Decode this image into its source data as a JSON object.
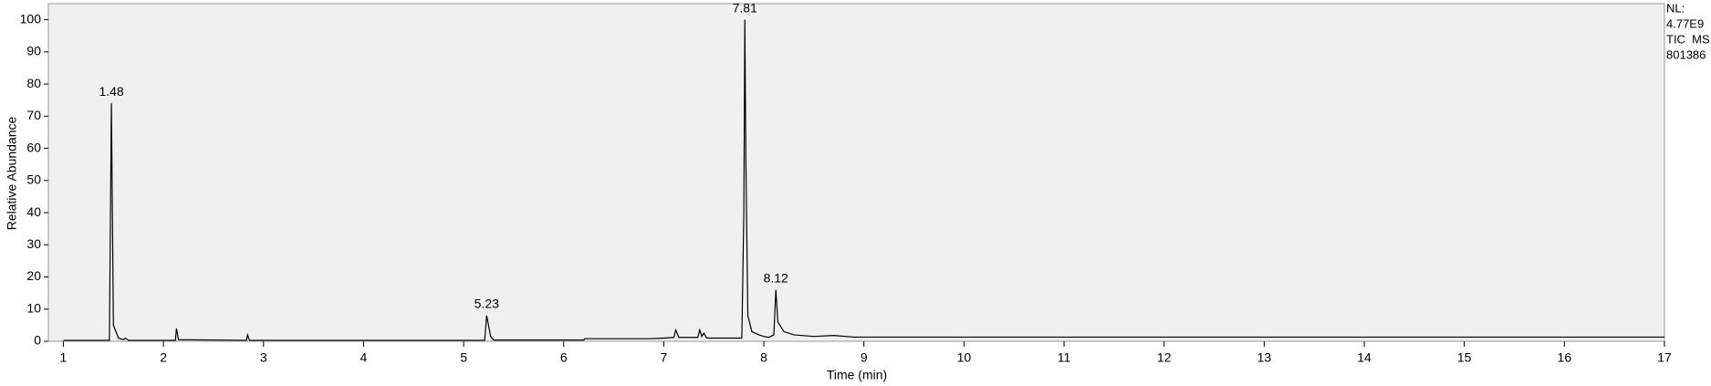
{
  "chart_data": {
    "type": "line",
    "x_label": "Time (min)",
    "y_label": "Relative Abundance",
    "side_note": [
      "NL:",
      "4.77E9",
      "TIC  MS",
      "801386"
    ],
    "xlim": [
      0.85,
      17
    ],
    "ylim": [
      0,
      105
    ],
    "xticks": [
      1,
      2,
      3,
      4,
      5,
      6,
      7,
      8,
      9,
      10,
      11,
      12,
      13,
      14,
      15,
      16,
      17
    ],
    "yticks": [
      0,
      10,
      20,
      30,
      40,
      50,
      60,
      70,
      80,
      90,
      100
    ],
    "series": [
      {
        "color": "#000000",
        "x": [
          1.0,
          1.46,
          1.48,
          1.5,
          1.55,
          1.6,
          1.62,
          1.65,
          2.12,
          2.13,
          2.15,
          2.83,
          2.84,
          2.86,
          5.21,
          5.23,
          5.27,
          5.3,
          6.2,
          6.21,
          6.85,
          7.0,
          7.1,
          7.12,
          7.15,
          7.34,
          7.36,
          7.38,
          7.4,
          7.43,
          7.78,
          7.8,
          7.81,
          7.82,
          7.84,
          7.88,
          7.95,
          8.0,
          8.05,
          8.1,
          8.12,
          8.14,
          8.2,
          8.3,
          8.5,
          8.7,
          8.9,
          17
        ],
        "values": [
          0.3,
          0.3,
          74,
          5,
          1,
          0.5,
          1,
          0.3,
          0.3,
          4,
          0.5,
          0.3,
          2,
          0.3,
          0.3,
          8,
          1.5,
          0.4,
          0.4,
          0.8,
          0.8,
          1,
          1.2,
          3.5,
          1.2,
          1.2,
          3.5,
          1.5,
          2.5,
          1,
          1,
          40,
          100,
          57,
          8,
          3,
          2,
          1.5,
          1.2,
          2,
          16,
          6,
          3,
          2,
          1.5,
          1.8,
          1.3,
          1.3
        ]
      }
    ],
    "peak_labels": {
      "x": [
        1.48,
        5.23,
        7.81,
        8.12
      ],
      "y": [
        74,
        8,
        100,
        16
      ]
    }
  }
}
